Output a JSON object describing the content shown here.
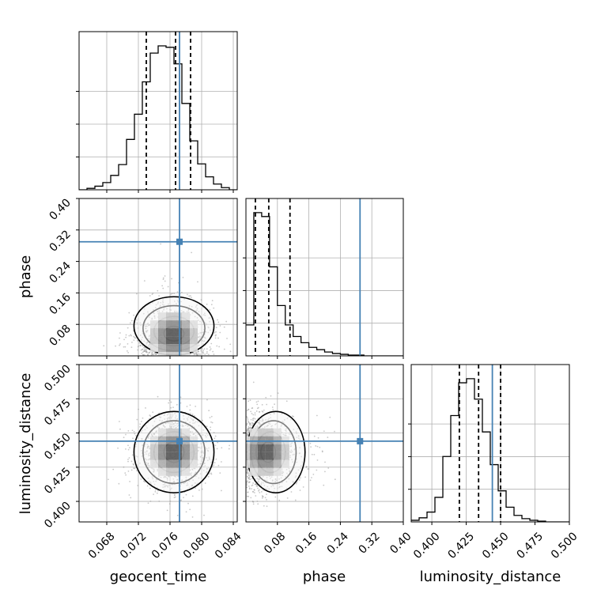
{
  "chart_data": {
    "type": "corner",
    "parameters": [
      "geocent_time",
      "phase",
      "luminosity_distance"
    ],
    "ranges": {
      "geocent_time": [
        0.0645,
        0.0845
      ],
      "phase": [
        0.0,
        0.4
      ],
      "luminosity_distance": [
        0.385,
        0.5
      ]
    },
    "truths": {
      "geocent_time": 0.0772,
      "phase": 0.29,
      "luminosity_distance": 0.444
    },
    "quantiles": {
      "geocent_time": [
        0.073,
        0.0767,
        0.0786
      ],
      "phase": [
        0.024,
        0.058,
        0.112
      ],
      "luminosity_distance": [
        0.42,
        0.434,
        0.45
      ]
    },
    "ticks": {
      "geocent_time": [
        "0.068",
        "0.072",
        "0.076",
        "0.080",
        "0.084"
      ],
      "phase_y": [
        "0.08",
        "0.16",
        "0.24",
        "0.32",
        "0.40"
      ],
      "phase_x": [
        "0.08",
        "0.16",
        "0.24",
        "0.32",
        "0.40"
      ],
      "luminosity_distance_y": [
        "0.400",
        "0.425",
        "0.450",
        "0.475",
        "0.500"
      ],
      "luminosity_distance_x": [
        "0.400",
        "0.425",
        "0.450",
        "0.475",
        "0.500"
      ]
    },
    "histograms": {
      "geocent_time": {
        "edges": [
          0.0645,
          0.0655,
          0.0665,
          0.0675,
          0.0685,
          0.0695,
          0.0705,
          0.0715,
          0.0725,
          0.0735,
          0.0745,
          0.0755,
          0.0765,
          0.0775,
          0.0785,
          0.0795,
          0.0805,
          0.0815,
          0.0825,
          0.0835,
          0.0845
        ],
        "counts": [
          0,
          2,
          5,
          10,
          20,
          35,
          70,
          105,
          150,
          190,
          200,
          198,
          175,
          120,
          68,
          36,
          18,
          8,
          3,
          0
        ]
      },
      "phase": {
        "edges": [
          0.0,
          0.02,
          0.04,
          0.06,
          0.08,
          0.1,
          0.12,
          0.14,
          0.16,
          0.18,
          0.2,
          0.22,
          0.24,
          0.26,
          0.28,
          0.3,
          0.32,
          0.34,
          0.36,
          0.38,
          0.4
        ],
        "counts": [
          40,
          185,
          180,
          115,
          65,
          40,
          25,
          17,
          11,
          8,
          5,
          3,
          2,
          1,
          1,
          0,
          0,
          0,
          0,
          0
        ]
      },
      "luminosity_distance": {
        "edges": [
          0.385,
          0.39075,
          0.3965,
          0.40225,
          0.408,
          0.41375,
          0.4195,
          0.42525,
          0.431,
          0.43675,
          0.4425,
          0.44825,
          0.454,
          0.45975,
          0.4655,
          0.47125,
          0.477,
          0.48275,
          0.4885,
          0.49425,
          0.5
        ],
        "counts": [
          2,
          5,
          12,
          30,
          80,
          130,
          170,
          175,
          150,
          110,
          70,
          38,
          18,
          8,
          4,
          2,
          1,
          0,
          0,
          0
        ]
      }
    },
    "grid": true,
    "colors": {
      "truth": "#4682b4",
      "hist": "#000000",
      "scatter": "#9a9a9a"
    }
  },
  "labels": {
    "x1": "geocent_time",
    "x2": "phase",
    "x3": "luminosity_distance",
    "y2": "phase",
    "y3": "luminosity_distance"
  }
}
